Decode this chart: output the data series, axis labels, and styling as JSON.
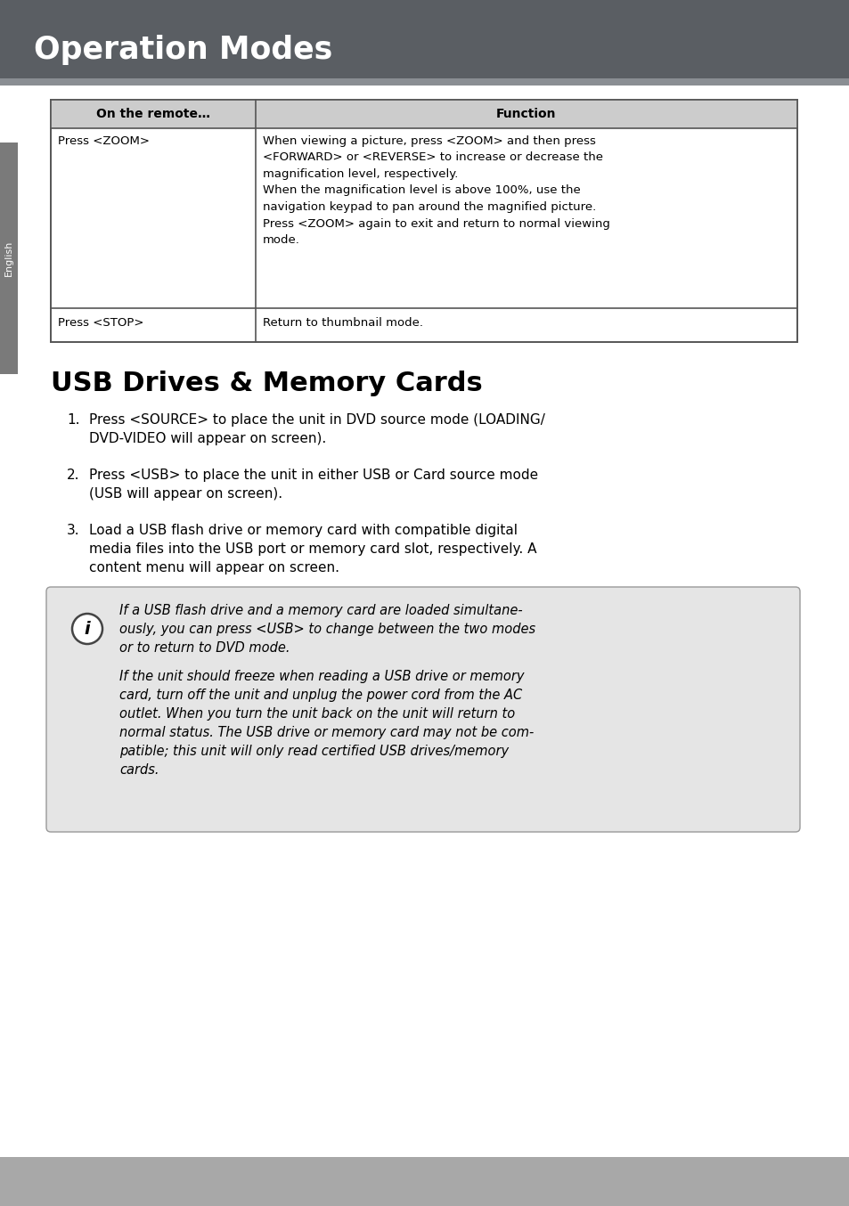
{
  "header_bg": "#5a5e63",
  "header_text": "Operation Modes",
  "header_text_color": "#ffffff",
  "page_bg": "#ffffff",
  "sidebar_bg": "#7a7a7a",
  "sidebar_text": "English",
  "footer_bg": "#a8a8a8",
  "table_header_bg": "#cccccc",
  "table_border": "#555555",
  "table_col1_header": "On the remote…",
  "table_col2_header": "Function",
  "table_row1_col1": "Press <ZOOM>",
  "table_row1_col2": "When viewing a picture, press <ZOOM> and then press\n<FORWARD> or <REVERSE> to increase or decrease the\nmagnification level, respectively.\nWhen the magnification level is above 100%, use the\nnavigation keypad to pan around the magnified picture.\nPress <ZOOM> again to exit and return to normal viewing\nmode.",
  "table_row2_col1": "Press <STOP>",
  "table_row2_col2": "Return to thumbnail mode.",
  "usb_title": "USB Drives & Memory Cards",
  "usb_items": [
    "Press <SOURCE> to place the unit in DVD source mode (LOADING/\nDVD-VIDEO will appear on screen).",
    "Press <USB> to place the unit in either USB or Card source mode\n(USB will appear on screen).",
    "Load a USB flash drive or memory card with compatible digital\nmedia files into the USB port or memory card slot, respectively. A\ncontent menu will appear on screen."
  ],
  "note_bg": "#e5e5e5",
  "note_border": "#999999",
  "note_text1": "If a USB flash drive and a memory card are loaded simultane-\nously, you can press <USB> to change between the two modes\nor to return to DVD mode.",
  "note_text2": "If the unit should freeze when reading a USB drive or memory\ncard, turn off the unit and unplug the power cord from the AC\noutlet. When you turn the unit back on the unit will return to\nnormal status. The USB drive or memory card may not be com-\npatible; this unit will only read certified USB drives/memory\ncards."
}
